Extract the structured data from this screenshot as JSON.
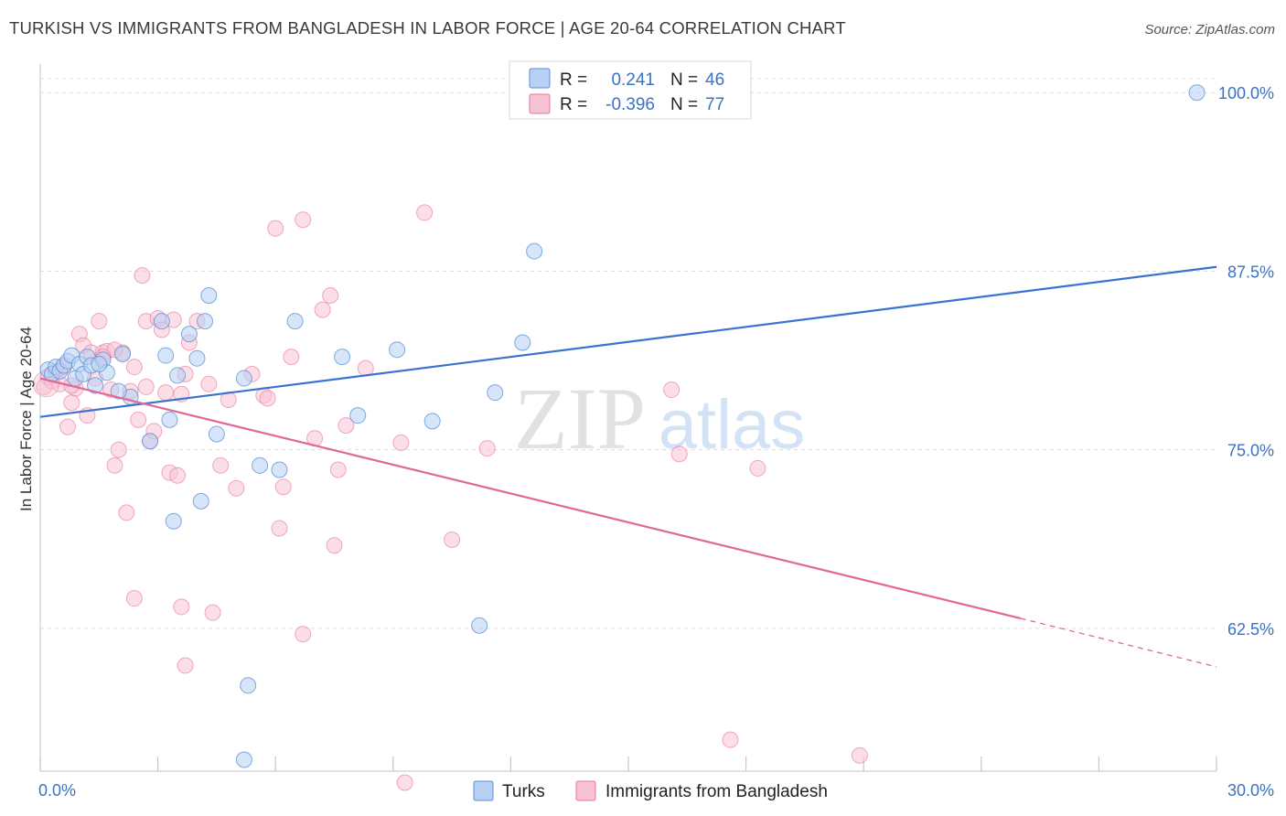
{
  "title": "TURKISH VS IMMIGRANTS FROM BANGLADESH IN LABOR FORCE | AGE 20-64 CORRELATION CHART",
  "source": "Source: ZipAtlas.com",
  "watermark": {
    "zip": "ZIP",
    "atlas": "atlas"
  },
  "colors": {
    "turks": "#5a8fd6",
    "turks_fill": "#b7d0f3",
    "bangladesh": "#e8759b",
    "bangladesh_fill": "#f7c3d4",
    "turks_line": "#3a72cf",
    "bangladesh_line": "#e0679a"
  },
  "legend": {
    "rows": [
      {
        "r_label": "R =",
        "r_value": "0.241",
        "n_label": "N =",
        "n_value": "46"
      },
      {
        "r_label": "R =",
        "r_value": "-0.396",
        "n_label": "N =",
        "n_value": "77"
      }
    ]
  },
  "bottom_legend": [
    "Turks",
    "Immigrants from Bangladesh"
  ],
  "chart_data": {
    "type": "scatter",
    "xlabel": "",
    "ylabel": "In Labor Force | Age 20-64",
    "xlim": [
      0,
      30
    ],
    "ylim": [
      52.5,
      102
    ],
    "x_tick_labels": [
      {
        "value": 0,
        "label": "0.0%"
      },
      {
        "value": 30,
        "label": "30.0%"
      }
    ],
    "y_tick_labels": [
      {
        "value": 100,
        "label": "100.0%"
      },
      {
        "value": 87.5,
        "label": "87.5%"
      },
      {
        "value": 75,
        "label": "75.0%"
      },
      {
        "value": 62.5,
        "label": "62.5%"
      }
    ],
    "grid": true,
    "series": [
      {
        "name": "Turks",
        "r": 0.241,
        "n": 46,
        "trend": {
          "x0": 0,
          "y0": 77.3,
          "x1": 30,
          "y1": 87.8
        },
        "points": [
          [
            0.2,
            80.6
          ],
          [
            0.3,
            80.3
          ],
          [
            0.4,
            80.8
          ],
          [
            0.5,
            80.5
          ],
          [
            0.6,
            80.9
          ],
          [
            0.7,
            81.2
          ],
          [
            0.8,
            81.6
          ],
          [
            0.9,
            80.0
          ],
          [
            1.0,
            81.0
          ],
          [
            1.1,
            80.3
          ],
          [
            1.2,
            81.5
          ],
          [
            1.3,
            80.9
          ],
          [
            1.4,
            79.5
          ],
          [
            1.6,
            81.3
          ],
          [
            1.7,
            80.4
          ],
          [
            2.1,
            81.7
          ],
          [
            2.3,
            78.7
          ],
          [
            3.1,
            84.0
          ],
          [
            3.2,
            81.6
          ],
          [
            3.3,
            77.1
          ],
          [
            3.5,
            80.2
          ],
          [
            3.8,
            83.1
          ],
          [
            4.0,
            81.4
          ],
          [
            4.2,
            84.0
          ],
          [
            4.3,
            85.8
          ],
          [
            4.5,
            76.1
          ],
          [
            5.2,
            80.0
          ],
          [
            5.6,
            73.9
          ],
          [
            6.1,
            73.6
          ],
          [
            6.5,
            84.0
          ],
          [
            7.7,
            81.5
          ],
          [
            8.1,
            77.4
          ],
          [
            9.1,
            82.0
          ],
          [
            10.0,
            77.0
          ],
          [
            11.6,
            79.0
          ],
          [
            12.3,
            82.5
          ],
          [
            12.6,
            88.9
          ],
          [
            2.8,
            75.6
          ],
          [
            3.4,
            70.0
          ],
          [
            4.1,
            71.4
          ],
          [
            5.3,
            58.5
          ],
          [
            5.2,
            53.3
          ],
          [
            11.2,
            62.7
          ],
          [
            2.0,
            79.1
          ],
          [
            1.5,
            81.0
          ],
          [
            29.5,
            100.0
          ]
        ]
      },
      {
        "name": "Immigrants from Bangladesh",
        "r": -0.396,
        "n": 77,
        "trend": {
          "x0": 0,
          "y0": 80.0,
          "x1": 25.0,
          "y1": 63.2,
          "x_dash": 30,
          "y_dash": 59.8
        },
        "points": [
          [
            0.1,
            79.4
          ],
          [
            0.2,
            80.1
          ],
          [
            0.3,
            79.8
          ],
          [
            0.4,
            80.5
          ],
          [
            0.5,
            79.6
          ],
          [
            0.6,
            80.8
          ],
          [
            0.7,
            76.6
          ],
          [
            0.8,
            78.3
          ],
          [
            0.9,
            79.3
          ],
          [
            1.0,
            83.1
          ],
          [
            1.1,
            82.3
          ],
          [
            1.2,
            77.4
          ],
          [
            1.3,
            81.8
          ],
          [
            1.4,
            80.0
          ],
          [
            1.5,
            84.0
          ],
          [
            1.6,
            81.8
          ],
          [
            1.7,
            81.9
          ],
          [
            1.8,
            79.2
          ],
          [
            1.9,
            73.9
          ],
          [
            2.0,
            75.0
          ],
          [
            2.1,
            81.8
          ],
          [
            2.2,
            70.6
          ],
          [
            2.3,
            79.1
          ],
          [
            2.4,
            80.8
          ],
          [
            2.5,
            77.1
          ],
          [
            2.6,
            87.2
          ],
          [
            2.7,
            84.0
          ],
          [
            2.8,
            75.6
          ],
          [
            2.9,
            76.3
          ],
          [
            3.0,
            84.2
          ],
          [
            3.1,
            83.4
          ],
          [
            3.2,
            79.0
          ],
          [
            3.3,
            73.4
          ],
          [
            3.4,
            84.1
          ],
          [
            3.5,
            73.2
          ],
          [
            3.6,
            78.9
          ],
          [
            3.7,
            80.3
          ],
          [
            3.8,
            82.5
          ],
          [
            4.0,
            84.0
          ],
          [
            4.3,
            79.6
          ],
          [
            4.6,
            73.9
          ],
          [
            5.0,
            72.3
          ],
          [
            5.4,
            80.3
          ],
          [
            5.7,
            78.8
          ],
          [
            5.8,
            78.6
          ],
          [
            6.0,
            90.5
          ],
          [
            6.2,
            72.4
          ],
          [
            6.4,
            81.5
          ],
          [
            6.7,
            91.1
          ],
          [
            7.0,
            75.8
          ],
          [
            7.2,
            84.8
          ],
          [
            7.4,
            85.8
          ],
          [
            7.6,
            73.6
          ],
          [
            7.8,
            76.7
          ],
          [
            8.3,
            80.7
          ],
          [
            9.2,
            75.5
          ],
          [
            9.8,
            91.6
          ],
          [
            10.5,
            68.7
          ],
          [
            11.4,
            75.1
          ],
          [
            16.1,
            79.2
          ],
          [
            16.3,
            74.7
          ],
          [
            18.3,
            73.7
          ],
          [
            2.4,
            64.6
          ],
          [
            3.6,
            64.0
          ],
          [
            4.4,
            63.6
          ],
          [
            3.7,
            59.9
          ],
          [
            6.1,
            69.5
          ],
          [
            6.7,
            62.1
          ],
          [
            7.5,
            68.3
          ],
          [
            9.3,
            51.7
          ],
          [
            17.6,
            54.7
          ],
          [
            20.9,
            53.6
          ],
          [
            1.9,
            82.0
          ],
          [
            2.7,
            79.4
          ],
          [
            4.8,
            78.5
          ],
          [
            0.8,
            79.5
          ],
          [
            1.6,
            81.5
          ]
        ]
      }
    ]
  }
}
